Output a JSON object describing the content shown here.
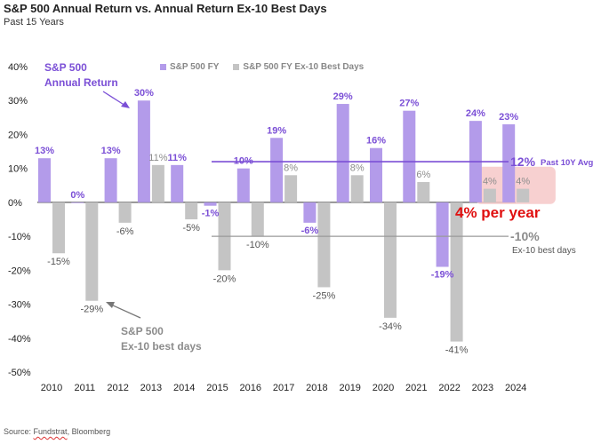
{
  "title": "S&P 500 Annual Return vs. Annual Return Ex-10 Best Days",
  "subtitle": "Past 15 Years",
  "source_prefix": "Source: ",
  "source_brand": "Fundstrat",
  "source_suffix": ", Bloomberg",
  "colors": {
    "fy": "#b39bea",
    "ex10": "#c4c4c4",
    "avg_line": "#7b4fd6",
    "ex10_line": "#9a9a9a",
    "highlight_fill": "#f6c8c8",
    "highlight_text": "#e01010",
    "fy_annotation": "#7b4fd6",
    "ex10_annotation": "#777777"
  },
  "legend": {
    "fy": "S&P 500 FY",
    "ex10": "S&P 500 FY Ex-10 Best Days"
  },
  "annotations": {
    "fy_label_line1": "S&P 500",
    "fy_label_line2": "Annual Return",
    "ex10_label_line1": "S&P 500",
    "ex10_label_line2": "Ex-10 best days",
    "avg_value": "12%",
    "avg_text": "Past 10Y Avg",
    "ex10_avg_value": "-10%",
    "ex10_avg_text": "Ex-10 best days",
    "highlight_text": "4% per year"
  },
  "chart_data": {
    "type": "bar",
    "title": "S&P 500 Annual Return vs. Annual Return Ex-10 Best Days",
    "subtitle": "Past 15 Years",
    "categories": [
      "2010",
      "2011",
      "2012",
      "2013",
      "2014",
      "2015",
      "2016",
      "2017",
      "2018",
      "2019",
      "2020",
      "2021",
      "2022",
      "2023",
      "2024"
    ],
    "series": [
      {
        "name": "S&P 500 FY",
        "values": [
          13,
          0,
          13,
          30,
          11,
          -1,
          10,
          19,
          -6,
          29,
          16,
          27,
          -19,
          24,
          23
        ],
        "labels": [
          "13%",
          "0%",
          "13%",
          "30%",
          "11%",
          "-1%",
          "10%",
          "19%",
          "-6%",
          "29%",
          "16%",
          "27%",
          "-19%",
          "24%",
          "23%"
        ]
      },
      {
        "name": "S&P 500 FY Ex-10 Best Days",
        "values": [
          -15,
          -29,
          -6,
          11,
          -5,
          -20,
          -10,
          8,
          -25,
          8,
          -34,
          6,
          -41,
          4,
          4
        ],
        "labels": [
          "-15%",
          "-29%",
          "-6%",
          "11%",
          "-5%",
          "-20%",
          "-10%",
          "8%",
          "-25%",
          "8%",
          "-34%",
          "6%",
          "-41%",
          "4%",
          "4%"
        ]
      }
    ],
    "yticks": [
      40,
      30,
      20,
      10,
      0,
      -10,
      -20,
      -30,
      -40,
      -50
    ],
    "ytick_labels": [
      "40%",
      "30%",
      "20%",
      "10%",
      "0%",
      "-10%",
      "-20%",
      "-30%",
      "-40%",
      "-50%"
    ],
    "ylim": [
      -50,
      40
    ],
    "reference_lines": [
      {
        "name": "Past 10Y Avg",
        "value": 12
      },
      {
        "name": "Ex-10 best days avg",
        "value": -10
      }
    ]
  }
}
